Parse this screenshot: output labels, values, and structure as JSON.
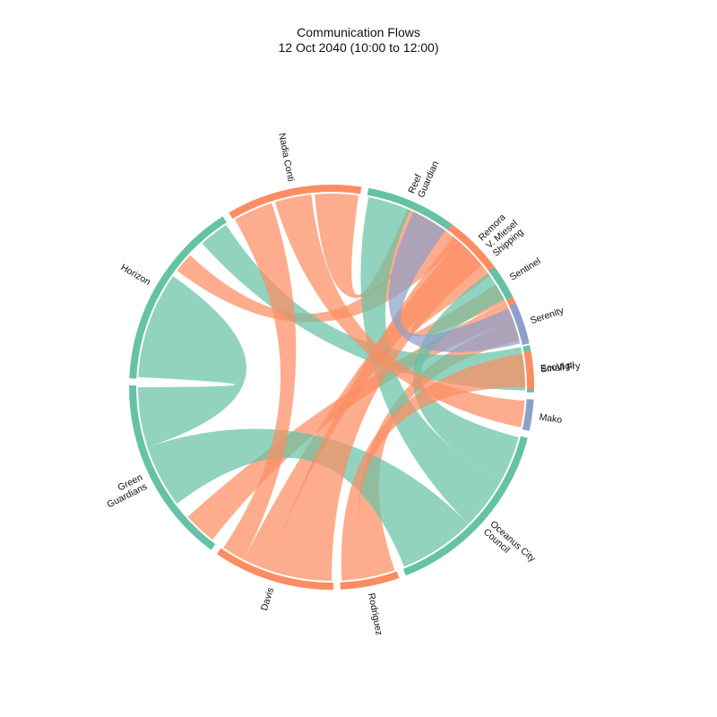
{
  "chart_data": {
    "type": "chord",
    "title": "Communication Flows",
    "subtitle": "12 Oct 2040 (10:00 to 12:00)",
    "colors": {
      "orange": "#fc8d62",
      "green": "#66c2a5",
      "purple": "#8da0cb"
    },
    "nodes": [
      {
        "id": "vmiesel",
        "label": [
          "V. Miesel",
          "Shipping"
        ],
        "start": 292.5,
        "end": 346,
        "color": "orange"
      },
      {
        "id": "ecovigil",
        "label": [
          "EcoVigil"
        ],
        "start": 348,
        "end": 361.5,
        "color": "green"
      },
      {
        "id": "mako",
        "label": [
          "Mako"
        ],
        "start": 363.5,
        "end": 372.5,
        "color": "purple"
      },
      {
        "id": "oceanus",
        "label": [
          "Oceanus City",
          "Council"
        ],
        "start": 374.5,
        "end": 428.5,
        "color": "green"
      },
      {
        "id": "rodriguez",
        "label": [
          "Rodriguez"
        ],
        "start": 430.5,
        "end": 447.5,
        "color": "orange"
      },
      {
        "id": "davis",
        "label": [
          "Davis"
        ],
        "start": 449.5,
        "end": 484.5,
        "color": "orange"
      },
      {
        "id": "greenguardians",
        "label": [
          "Green",
          "Guardians"
        ],
        "start": 486.5,
        "end": 540.5,
        "color": "green"
      },
      {
        "id": "horizon",
        "label": [
          "Horizon"
        ],
        "start": 542.5,
        "end": 597.5,
        "color": "green"
      },
      {
        "id": "nadiaconti",
        "label": [
          "Nadia Conti"
        ],
        "start": 599.5,
        "end": 638.5,
        "color": "orange"
      },
      {
        "id": "reefguardian",
        "label": [
          "Reef",
          "Guardian"
        ],
        "start": 640.5,
        "end": 666.5,
        "color": "green"
      },
      {
        "id": "remora",
        "label": [
          "Remora"
        ],
        "start": 668.5,
        "end": 681.5,
        "color": "orange"
      },
      {
        "id": "sentinel",
        "label": [
          "Sentinel"
        ],
        "start": 683.5,
        "end": 693.5,
        "color": "green"
      },
      {
        "id": "serenity",
        "label": [
          "Serenity"
        ],
        "start": 695.5,
        "end": 707.5,
        "color": "purple"
      },
      {
        "id": "smallfry",
        "label": [
          "Small Fry"
        ],
        "start": 709.5,
        "end": 720.5,
        "color": "orange"
      }
    ],
    "flows": [
      {
        "from": "vmiesel",
        "to": "nadiaconti",
        "src": [
          293,
          301
        ],
        "dst": [
          625,
          638
        ],
        "color": "orange"
      },
      {
        "from": "vmiesel",
        "to": "horizon",
        "src": [
          301,
          311
        ],
        "dst": [
          577,
          583
        ],
        "color": "orange"
      },
      {
        "from": "vmiesel",
        "to": "davis",
        "src": [
          311,
          319
        ],
        "dst": [
          469,
          477
        ],
        "color": "orange"
      },
      {
        "from": "vmiesel",
        "to": "vmiesel",
        "src": [
          319,
          325
        ],
        "dst": [
          328,
          334
        ],
        "color": "orange"
      },
      {
        "from": "vmiesel",
        "to": "greenguardians",
        "src": [
          334,
          340
        ],
        "dst": [
          488,
          498
        ],
        "color": "orange"
      },
      {
        "from": "vmiesel",
        "to": "rodriguez",
        "src": [
          340,
          346
        ],
        "dst": [
          431,
          441
        ],
        "color": "orange"
      },
      {
        "from": "ecovigil",
        "to": "horizon",
        "src": [
          348,
          361
        ],
        "dst": [
          588,
          597
        ],
        "color": "green"
      },
      {
        "from": "oceanus",
        "to": "sentinel",
        "src": [
          375,
          389
        ],
        "dst": [
          684,
          693
        ],
        "color": "green"
      },
      {
        "from": "oceanus",
        "to": "reefguardian",
        "src": [
          389,
          405
        ],
        "dst": [
          641,
          654
        ],
        "color": "green"
      },
      {
        "from": "oceanus",
        "to": "greenguardians",
        "src": [
          405,
          428
        ],
        "dst": [
          503,
          522
        ],
        "color": "green"
      },
      {
        "from": "rodriguez",
        "to": "smallfry",
        "src": [
          441,
          447
        ],
        "dst": [
          710,
          720
        ],
        "color": "orange"
      },
      {
        "from": "davis",
        "to": "remora",
        "src": [
          450,
          469
        ],
        "dst": [
          669,
          681
        ],
        "color": "orange"
      },
      {
        "from": "davis",
        "to": "nadiaconti",
        "src": [
          477,
          484
        ],
        "dst": [
          600,
          612
        ],
        "color": "orange"
      },
      {
        "from": "greenguardians",
        "to": "horizon",
        "src": [
          522,
          540
        ],
        "dst": [
          543,
          575
        ],
        "color": "green"
      },
      {
        "from": "serenity",
        "to": "reefguardian",
        "src": [
          696,
          707
        ],
        "dst": [
          655,
          666
        ],
        "color": "purple"
      },
      {
        "from": "mako",
        "to": "nadiaconti",
        "src": [
          364,
          372
        ],
        "dst": [
          613,
          624
        ],
        "color": "orange"
      }
    ]
  }
}
